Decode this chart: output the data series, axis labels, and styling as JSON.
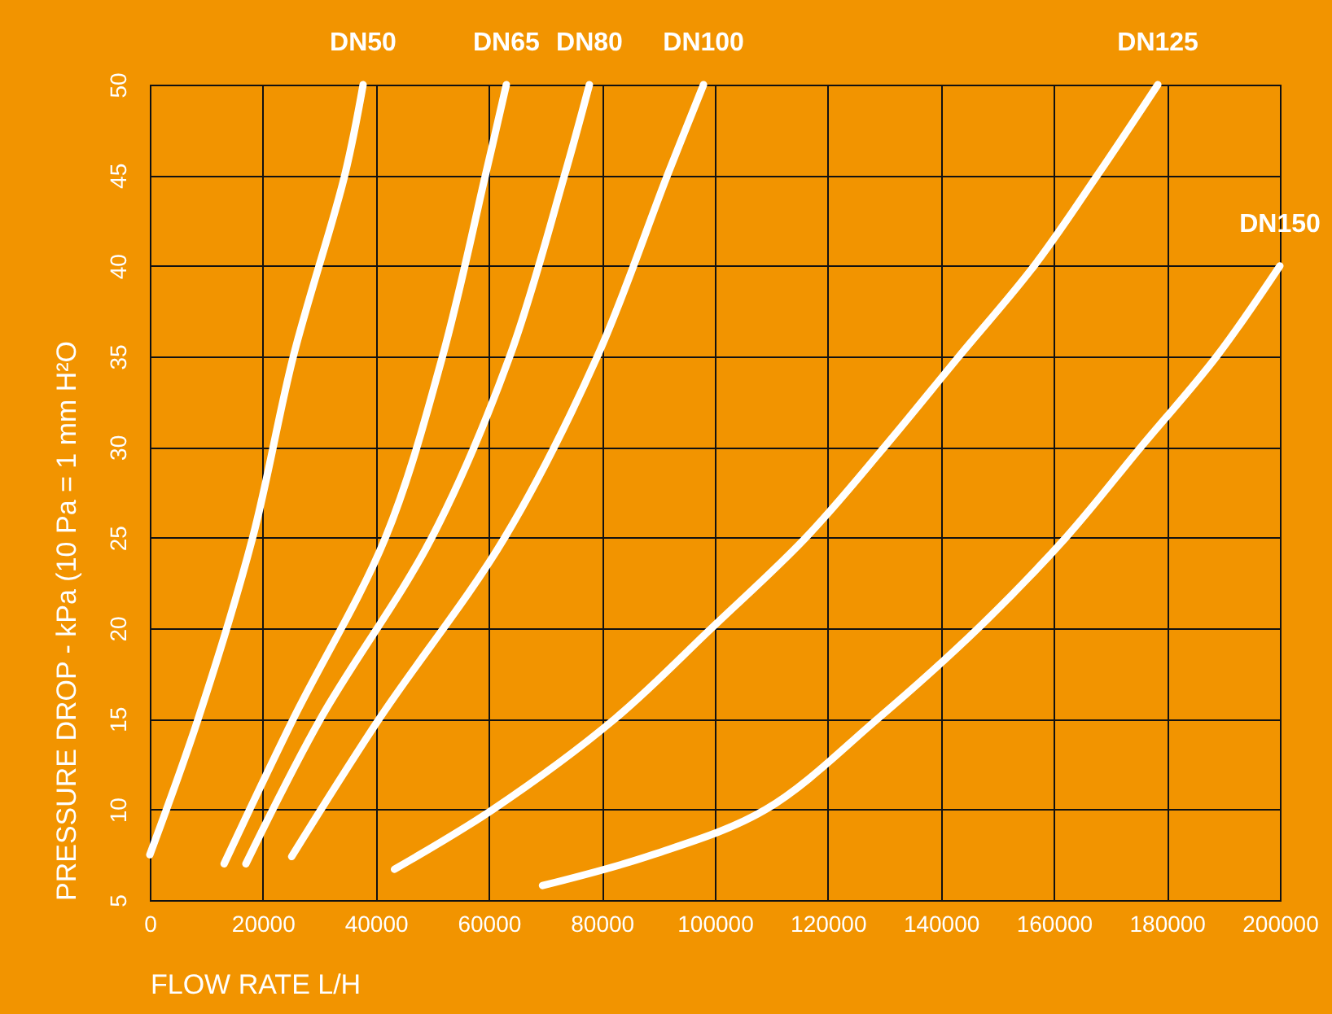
{
  "chart_data": {
    "type": "line",
    "xlabel": "FLOW RATE L/H",
    "ylabel": "PRESSURE DROP - kPa (10 Pa = 1 mm H²O",
    "xlim": [
      0,
      200000
    ],
    "ylim": [
      5,
      50
    ],
    "xticks": [
      0,
      20000,
      40000,
      60000,
      80000,
      100000,
      120000,
      140000,
      160000,
      180000,
      200000
    ],
    "yticks": [
      5,
      10,
      15,
      20,
      25,
      30,
      35,
      40,
      45,
      50
    ],
    "grid": true,
    "legend": false,
    "marker": "none",
    "line_style": "solid",
    "series": [
      {
        "name": "DN50",
        "color": "#ffffff",
        "x": [
          0,
          8550,
          18200,
          25400,
          34500,
          37750
        ],
        "values": [
          7.5,
          15,
          25,
          35,
          45,
          50
        ]
      },
      {
        "name": "DN65",
        "color": "#ffffff",
        "x": [
          13150,
          25400,
          41700,
          51800,
          59400,
          63100
        ],
        "values": [
          7,
          15,
          25,
          35,
          45,
          50
        ]
      },
      {
        "name": "DN80",
        "color": "#ffffff",
        "x": [
          17000,
          30200,
          49900,
          63700,
          73400,
          77800
        ],
        "values": [
          7,
          15,
          25,
          35,
          45,
          50
        ]
      },
      {
        "name": "DN100",
        "color": "#ffffff",
        "x": [
          25100,
          40600,
          62800,
          79200,
          91600,
          98000
        ],
        "values": [
          7.4,
          15,
          25,
          35,
          45,
          50
        ]
      },
      {
        "name": "DN125",
        "color": "#ffffff",
        "x": [
          43300,
          60700,
          82300,
          99400,
          116100,
          130000,
          143200,
          156500,
          167700,
          178400
        ],
        "values": [
          6.7,
          10,
          15,
          20,
          25,
          30,
          35,
          40,
          45,
          50
        ]
      },
      {
        "name": "DN150",
        "color": "#ffffff",
        "x": [
          69500,
          89000,
          109000,
          128800,
          146600,
          162100,
          175400,
          188800,
          200000
        ],
        "values": [
          5.8,
          7.5,
          10,
          15,
          20,
          25,
          30,
          35,
          40
        ]
      }
    ]
  }
}
